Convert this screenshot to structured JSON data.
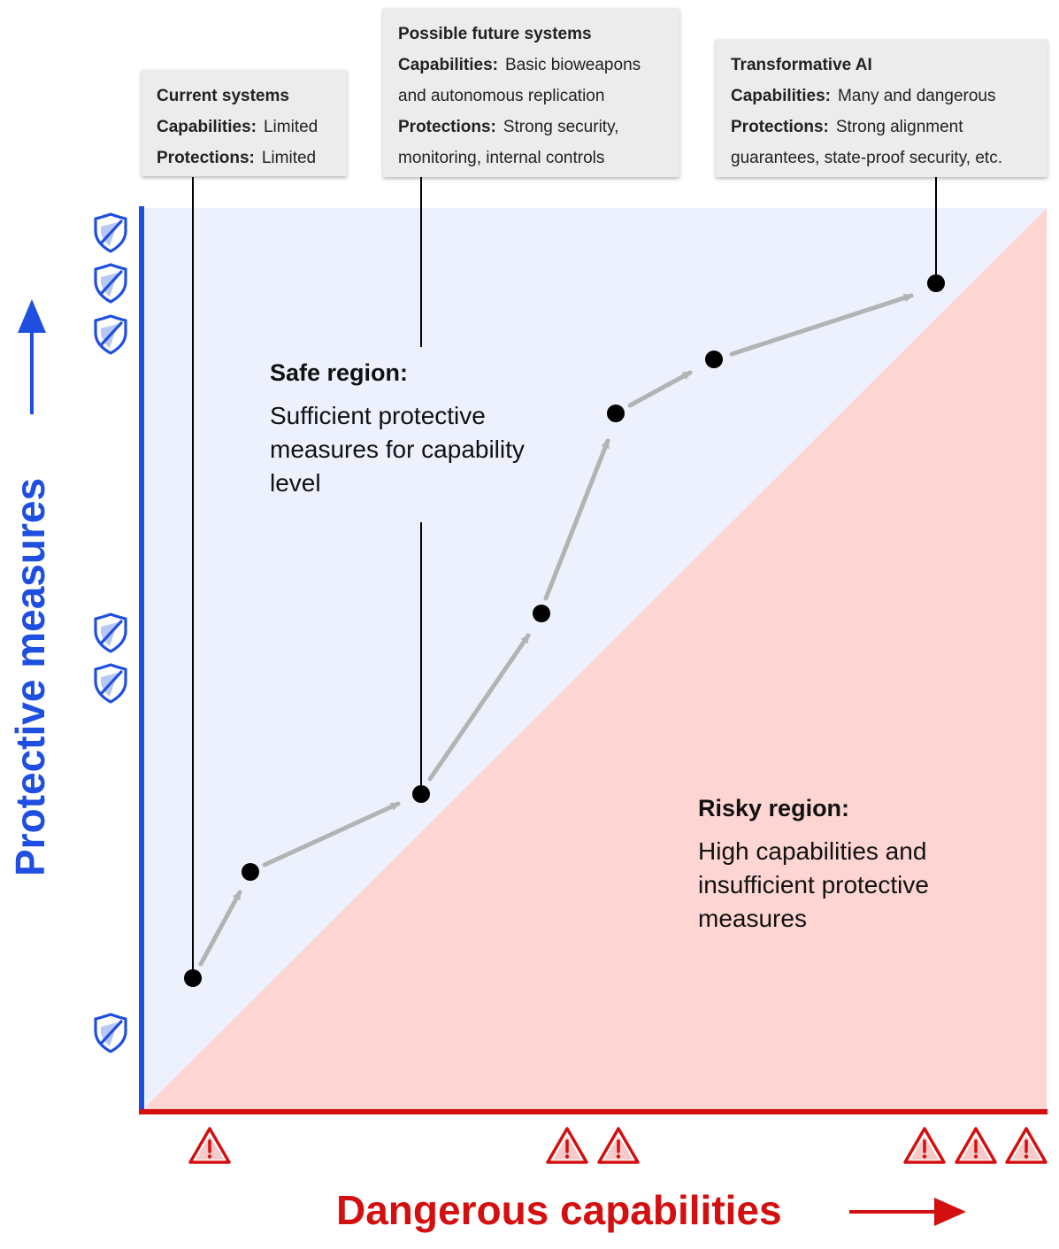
{
  "colors": {
    "safe_fill": "#edf1fd",
    "risky_fill": "#fdd5d3",
    "protective_axis": "#1f4fe0",
    "dangerous_axis": "#d40f0f",
    "path_arrow": "#b3b3b3",
    "point": "#000000"
  },
  "axes": {
    "x_label": "Dangerous capabilities",
    "y_label": "Protective measures",
    "x_icon": "warning-triangle-icon",
    "y_icon": "shield-icon"
  },
  "regions": {
    "safe": {
      "title": "Safe region:",
      "body": "Sufficient protective measures for capability level"
    },
    "risky": {
      "title": "Risky region:",
      "body": "High capabilities and insufficient protective measures"
    }
  },
  "callouts": [
    {
      "title": "Current systems",
      "capabilities_label": "Capabilities:",
      "capabilities": "Limited",
      "protections_label": "Protections:",
      "protections": "Limited"
    },
    {
      "title": "Possible future systems",
      "capabilities_label": "Capabilities:",
      "capabilities": "Basic bioweapons and autonomous replication",
      "protections_label": "Protections:",
      "protections": "Strong security, monitoring, internal controls"
    },
    {
      "title": "Transformative AI",
      "capabilities_label": "Capabilities:",
      "capabilities": "Many and dangerous",
      "protections_label": "Protections:",
      "protections": "Strong alignment guarantees, state-proof security, etc."
    }
  ]
}
